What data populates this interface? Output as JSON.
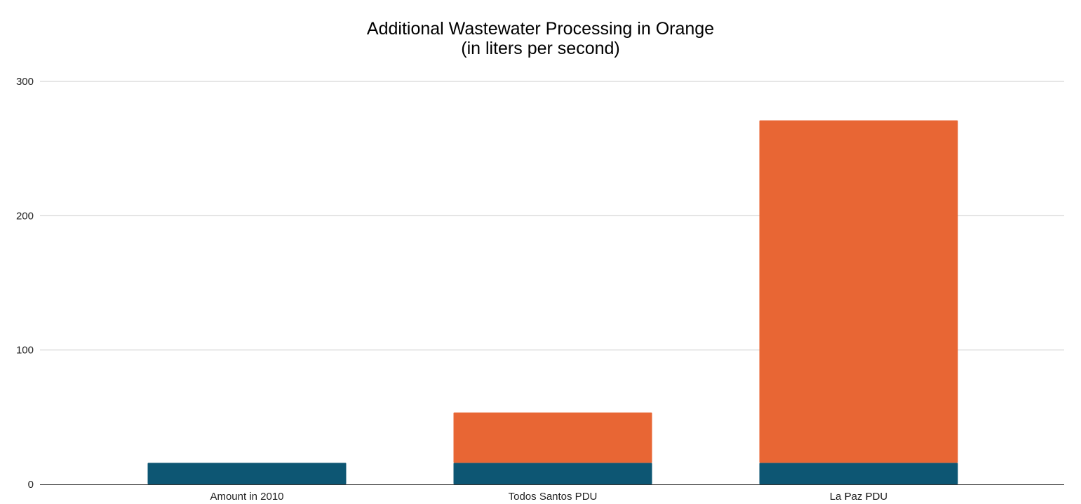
{
  "chart_data": {
    "type": "bar",
    "stacked": true,
    "title": "Additional Wastewater Processing in Orange",
    "subtitle": "(in liters per second)",
    "xlabel": "",
    "ylabel": "",
    "categories": [
      "Amount in 2010",
      "Todos Santos PDU",
      "La Paz PDU"
    ],
    "series": [
      {
        "color": "#0d5673",
        "values": [
          16,
          16,
          16
        ]
      },
      {
        "color": "#e86634",
        "values": [
          0,
          37.5,
          255
        ]
      }
    ],
    "ylim": [
      0,
      300
    ],
    "yticks": [
      0,
      100,
      200,
      300
    ],
    "grid": true,
    "legend": "none"
  }
}
